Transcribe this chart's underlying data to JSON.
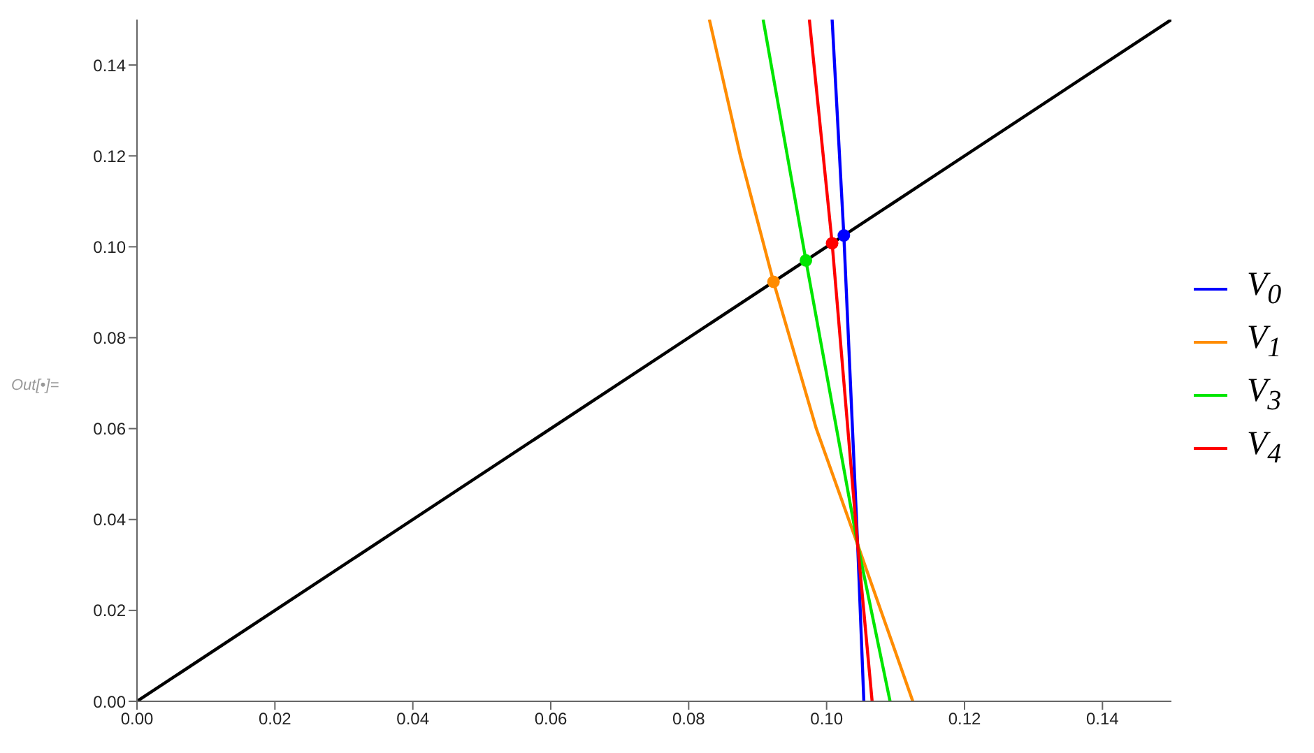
{
  "chart_data": {
    "type": "line",
    "xlim": [
      0,
      0.15
    ],
    "ylim": [
      0,
      0.15
    ],
    "xticks": [
      {
        "value": 0,
        "label": "0.00"
      },
      {
        "value": 0.02,
        "label": "0.02"
      },
      {
        "value": 0.04,
        "label": "0.04"
      },
      {
        "value": 0.06,
        "label": "0.06"
      },
      {
        "value": 0.08,
        "label": "0.08"
      },
      {
        "value": 0.1,
        "label": "0.10"
      },
      {
        "value": 0.12,
        "label": "0.12"
      },
      {
        "value": 0.14,
        "label": "0.14"
      }
    ],
    "yticks": [
      {
        "value": 0,
        "label": "0.00"
      },
      {
        "value": 0.02,
        "label": "0.02"
      },
      {
        "value": 0.04,
        "label": "0.04"
      },
      {
        "value": 0.06,
        "label": "0.06"
      },
      {
        "value": 0.08,
        "label": "0.08"
      },
      {
        "value": 0.1,
        "label": "0.10"
      },
      {
        "value": 0.12,
        "label": "0.12"
      },
      {
        "value": 0.14,
        "label": "0.14"
      }
    ],
    "grid": false,
    "legend": "right",
    "marker": "none",
    "line_style": "solid",
    "annotations": [
      "Out[•]="
    ],
    "series": [
      {
        "color": "#000000",
        "x": [
          0,
          0.15
        ],
        "values": [
          0,
          0.15
        ]
      },
      {
        "name": "V$_{0}$",
        "color": "#0000ff",
        "x": [
          0.1008,
          0.1025,
          0.1045,
          0.1054
        ],
        "values": [
          0.15,
          0.1025,
          0.0345,
          0
        ]
      },
      {
        "name": "V$_{1}$",
        "color": "#ff8c00",
        "x": [
          0.083,
          0.0875,
          0.0923,
          0.0985,
          0.1045,
          0.1125
        ],
        "values": [
          0.15,
          0.12,
          0.0923,
          0.06,
          0.0345,
          0
        ]
      },
      {
        "name": "V$_{3}$",
        "color": "#00e600",
        "x": [
          0.0908,
          0.097,
          0.1045,
          0.1092
        ],
        "values": [
          0.15,
          0.097,
          0.0345,
          0
        ]
      },
      {
        "name": "V$_{4}$",
        "color": "#ff0000",
        "x": [
          0.0975,
          0.1008,
          0.1045,
          0.1066
        ],
        "values": [
          0.15,
          0.1008,
          0.0345,
          0
        ]
      },
      {
        "type": "scatter",
        "marker": "circle",
        "color": "#ff8c00",
        "x": [
          0.0923
        ],
        "values": [
          0.0923
        ]
      },
      {
        "type": "scatter",
        "marker": "circle",
        "color": "#00e600",
        "x": [
          0.097
        ],
        "values": [
          0.097
        ]
      },
      {
        "type": "scatter",
        "marker": "circle",
        "color": "#ff0000",
        "x": [
          0.1008
        ],
        "values": [
          0.1008
        ]
      },
      {
        "type": "scatter",
        "marker": "circle",
        "color": "#0000ff",
        "x": [
          0.1025
        ],
        "values": [
          0.1025
        ]
      }
    ]
  }
}
